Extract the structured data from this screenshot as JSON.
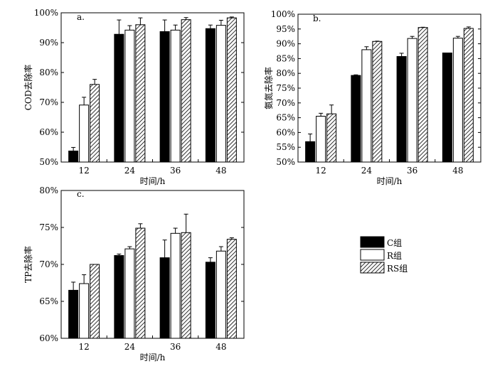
{
  "figure_labels": {
    "legend_title": "",
    "groups": [
      "C组",
      "R组",
      "RS组"
    ]
  },
  "chart_data": [
    {
      "type": "bar",
      "panel": "a.",
      "xlabel": "时间/h",
      "ylabel": "COD去除率",
      "categories": [
        "12",
        "24",
        "36",
        "48"
      ],
      "ylim": [
        50,
        100
      ],
      "yticks": [
        50,
        60,
        70,
        80,
        90,
        100
      ],
      "ytick_labels": [
        "50%",
        "60%",
        "70%",
        "80%",
        "90%",
        "100%"
      ],
      "series": [
        {
          "name": "C组",
          "values": [
            53.7,
            92.8,
            93.7,
            94.7
          ],
          "errors": [
            1.2,
            4.8,
            3.9,
            1.2
          ]
        },
        {
          "name": "R组",
          "values": [
            69.1,
            94.2,
            94.2,
            95.8
          ],
          "errors": [
            2.6,
            1.5,
            1.7,
            1.7
          ]
        },
        {
          "name": "RS组",
          "values": [
            76.0,
            96.0,
            97.7,
            98.3
          ],
          "errors": [
            1.7,
            2.3,
            0.7,
            0.3
          ]
        }
      ]
    },
    {
      "type": "bar",
      "panel": "b.",
      "xlabel": "时间/h",
      "ylabel": "氨氮去除率",
      "categories": [
        "12",
        "24",
        "36",
        "48"
      ],
      "ylim": [
        50,
        100
      ],
      "yticks": [
        50,
        55,
        60,
        65,
        70,
        75,
        80,
        85,
        90,
        95,
        100
      ],
      "ytick_labels": [
        "50%",
        "55%",
        "60%",
        "65%",
        "70%",
        "75%",
        "80%",
        "85%",
        "90%",
        "95%",
        "100%"
      ],
      "series": [
        {
          "name": "C组",
          "values": [
            56.9,
            79.3,
            85.7,
            86.9
          ],
          "errors": [
            2.6,
            0.2,
            1.1,
            0.0
          ]
        },
        {
          "name": "R组",
          "values": [
            65.5,
            88.0,
            91.8,
            91.9
          ],
          "errors": [
            1.0,
            1.0,
            0.7,
            0.6
          ]
        },
        {
          "name": "RS组",
          "values": [
            66.3,
            90.8,
            95.5,
            95.2
          ],
          "errors": [
            3.0,
            0.1,
            0.1,
            0.5
          ]
        }
      ]
    },
    {
      "type": "bar",
      "panel": "c.",
      "xlabel": "时间/h",
      "ylabel": "TP去除率",
      "categories": [
        "12",
        "24",
        "36",
        "48"
      ],
      "ylim": [
        60,
        80
      ],
      "yticks": [
        60,
        65,
        70,
        75,
        80
      ],
      "ytick_labels": [
        "60%",
        "65%",
        "70%",
        "75%",
        "80%"
      ],
      "series": [
        {
          "name": "C组",
          "values": [
            66.5,
            71.2,
            70.9,
            70.3
          ],
          "errors": [
            1.1,
            0.2,
            2.4,
            0.6
          ]
        },
        {
          "name": "R组",
          "values": [
            67.4,
            72.1,
            74.2,
            71.8
          ],
          "errors": [
            1.2,
            0.3,
            0.7,
            0.6
          ]
        },
        {
          "name": "RS组",
          "values": [
            70.0,
            74.9,
            74.3,
            73.4
          ],
          "errors": [
            0.0,
            0.6,
            2.5,
            0.2
          ]
        }
      ]
    }
  ]
}
